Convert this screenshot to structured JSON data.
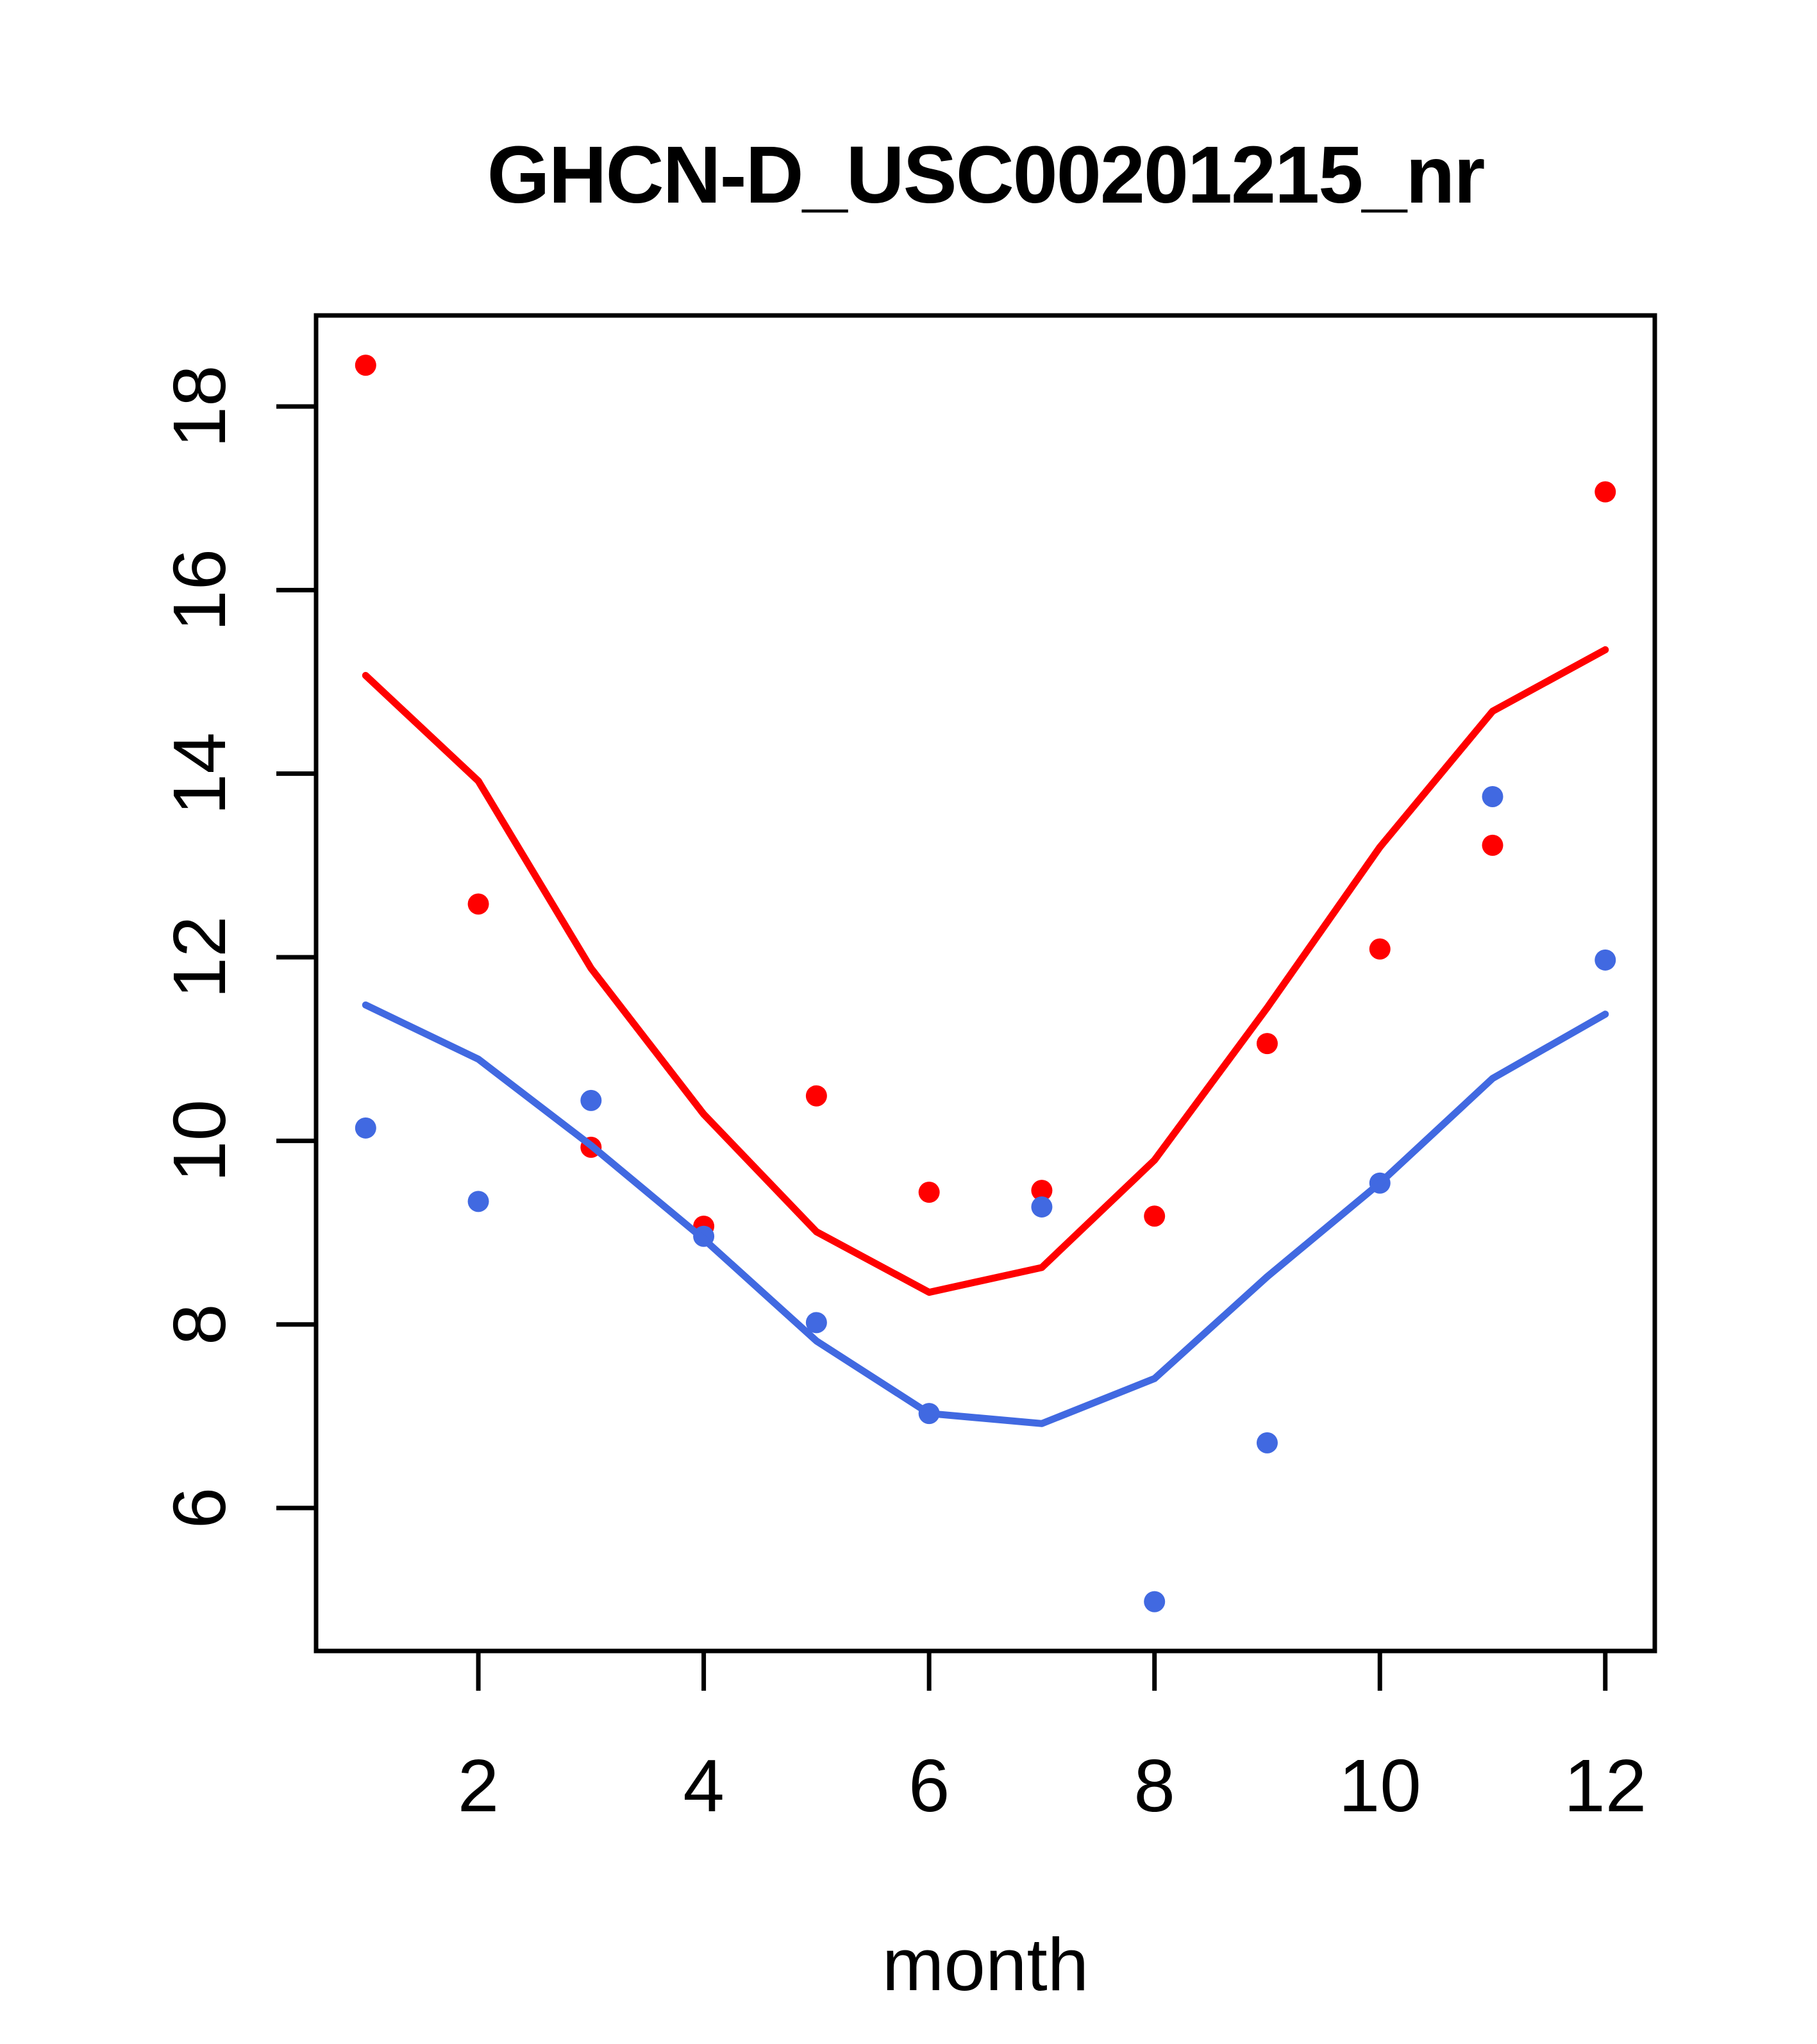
{
  "chart_data": {
    "type": "scatter",
    "title": "GHCN-D_USC00201215_nr",
    "xlabel": "month",
    "ylabel": "",
    "x": [
      1,
      2,
      3,
      4,
      5,
      6,
      7,
      8,
      9,
      10,
      11,
      12
    ],
    "x_ticks": [
      2,
      4,
      6,
      8,
      10,
      12
    ],
    "y_ticks": [
      6,
      8,
      10,
      12,
      14,
      16,
      18
    ],
    "xlim": [
      0.56,
      12.44
    ],
    "ylim": [
      4.44,
      18.99
    ],
    "grid": false,
    "legend_position": "none",
    "colors": {
      "red": "#FF0000",
      "blue": "#4169E1",
      "axis": "#000000"
    },
    "series": [
      {
        "name": "red-points",
        "type": "scatter",
        "color": "red",
        "values": [
          18.45,
          12.58,
          9.93,
          9.07,
          10.49,
          9.44,
          9.46,
          9.18,
          11.06,
          12.09,
          13.22,
          17.07
        ]
      },
      {
        "name": "blue-points",
        "type": "scatter",
        "color": "blue",
        "values": [
          10.14,
          9.34,
          10.44,
          8.96,
          8.02,
          7.03,
          9.28,
          4.98,
          6.71,
          9.54,
          13.75,
          11.97
        ]
      },
      {
        "name": "red-line",
        "type": "line",
        "color": "red",
        "values": [
          15.07,
          13.92,
          11.88,
          10.29,
          9.01,
          8.35,
          8.62,
          9.79,
          11.45,
          13.2,
          14.68,
          15.35
        ]
      },
      {
        "name": "blue-line",
        "type": "line",
        "color": "blue",
        "values": [
          11.48,
          10.89,
          9.95,
          8.93,
          7.82,
          7.03,
          6.92,
          7.41,
          8.52,
          9.54,
          10.68,
          11.38
        ]
      }
    ]
  }
}
